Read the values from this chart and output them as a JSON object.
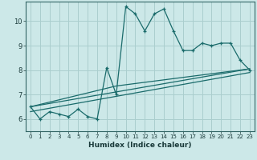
{
  "xlabel": "Humidex (Indice chaleur)",
  "bg_color": "#cce8e8",
  "grid_color": "#aacece",
  "line_color": "#1a6b6b",
  "x_ticks": [
    0,
    1,
    2,
    3,
    4,
    5,
    6,
    7,
    8,
    9,
    10,
    11,
    12,
    13,
    14,
    15,
    16,
    17,
    18,
    19,
    20,
    21,
    22,
    23
  ],
  "y_ticks": [
    6,
    7,
    8,
    9,
    10
  ],
  "ylim": [
    5.5,
    10.8
  ],
  "xlim": [
    -0.5,
    23.5
  ],
  "line1_x": [
    0,
    1,
    2,
    3,
    4,
    5,
    6,
    7,
    8,
    9,
    10,
    11,
    12,
    13,
    14,
    15,
    16,
    17,
    18,
    19,
    20,
    21,
    22,
    23
  ],
  "line1_y": [
    6.5,
    6.0,
    6.3,
    6.2,
    6.1,
    6.4,
    6.1,
    6.0,
    8.1,
    7.0,
    10.6,
    10.3,
    9.6,
    10.3,
    10.5,
    9.6,
    8.8,
    8.8,
    9.1,
    9.0,
    9.1,
    9.1,
    8.4,
    8.0
  ],
  "line2_x": [
    0,
    23
  ],
  "line2_y": [
    6.5,
    8.05
  ],
  "line3_x": [
    0,
    9,
    23
  ],
  "line3_y": [
    6.5,
    7.35,
    8.05
  ],
  "line4_x": [
    0,
    23
  ],
  "line4_y": [
    6.3,
    7.9
  ]
}
